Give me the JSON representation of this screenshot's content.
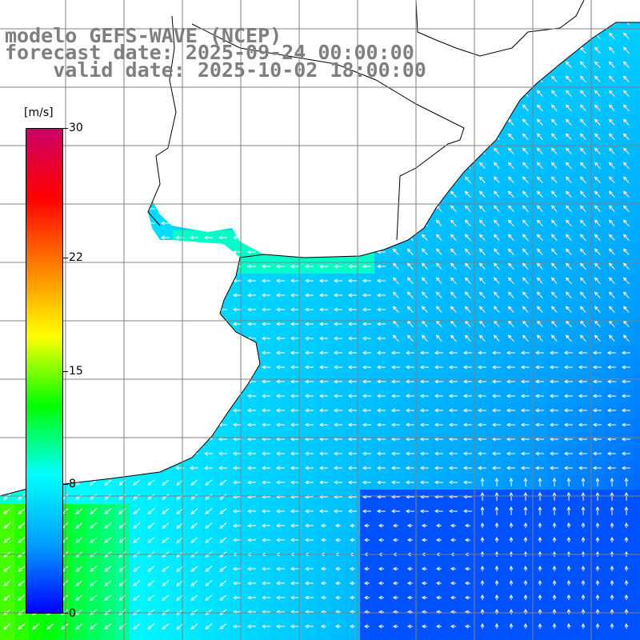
{
  "title": {
    "line1": "modelo GEFS-WAVE (NCEP)",
    "line2": "forecast date: 2025-09-24 00:00:00",
    "line3": "valid date: 2025-10-02 18:00:00"
  },
  "colorbar": {
    "unit": "[m/s]",
    "ticks": [
      "30",
      "22",
      "15",
      "8",
      "0"
    ],
    "tick_values": [
      30,
      22,
      15,
      8,
      0
    ],
    "range": [
      0,
      30
    ],
    "colors": [
      "#0000ff",
      "#00a0ff",
      "#00ffff",
      "#00ff00",
      "#ffff00",
      "#ff8000",
      "#ff0000",
      "#cc0066"
    ]
  },
  "colors": {
    "land": "#ffffff",
    "coast": "#000000",
    "grid": "#808080",
    "title": "#7f7f7f",
    "arrow": "#ffffff"
  }
}
